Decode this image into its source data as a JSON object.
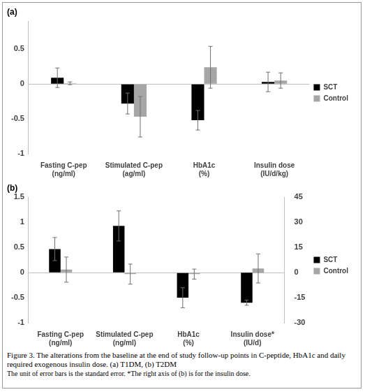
{
  "chart_data": [
    {
      "type": "bar",
      "title": "(a)",
      "categories": [
        [
          "Fasting C-pep",
          "(ng/ml)"
        ],
        [
          "Stimulated C-pep",
          "(ag/ml)"
        ],
        [
          "HbA1c",
          "(%)"
        ],
        [
          "Insulin dose",
          "(IU/d/kg)"
        ]
      ],
      "series": [
        {
          "name": "SCT",
          "color": "#000000",
          "values": [
            0.09,
            -0.28,
            -0.52,
            0.03
          ],
          "errors": [
            0.14,
            0.15,
            0.14,
            0.14
          ]
        },
        {
          "name": "Control",
          "color": "#a6a6a6",
          "values": [
            0.01,
            -0.47,
            0.24,
            0.05
          ],
          "errors": [
            0.02,
            0.29,
            0.3,
            0.11
          ]
        }
      ],
      "ylim": [
        -1,
        0.9
      ],
      "yticks": [
        -1,
        -0.5,
        0,
        0.5
      ],
      "grid": false,
      "legend": "right"
    },
    {
      "type": "bar",
      "title": "(b)",
      "categories": [
        [
          "Fasting C-pep",
          "(ng/ml)"
        ],
        [
          "Stimulated C-pep",
          "(ng/ml)"
        ],
        [
          "HbA1c",
          "(%)"
        ],
        [
          "Insulin dose*",
          "(IU/d)"
        ]
      ],
      "series": [
        {
          "name": "SCT",
          "color": "#000000",
          "values": [
            0.47,
            0.93,
            -0.5,
            null
          ],
          "errors": [
            0.23,
            0.3,
            0.2,
            null
          ]
        },
        {
          "name": "Control",
          "color": "#a6a6a6",
          "values": [
            0.06,
            -0.03,
            -0.03,
            null
          ],
          "errors": [
            0.25,
            0.2,
            0.1,
            null
          ]
        },
        {
          "name": "SCT",
          "color": "#000000",
          "axis": "y2",
          "values": [
            null,
            null,
            null,
            -18
          ],
          "errors": [
            null,
            null,
            null,
            1.5
          ]
        },
        {
          "name": "Control",
          "color": "#a6a6a6",
          "axis": "y2",
          "values": [
            null,
            null,
            null,
            2.5
          ],
          "errors": [
            null,
            null,
            null,
            8.7
          ]
        }
      ],
      "ylim": [
        -1,
        1.5
      ],
      "yticks": [
        -1,
        -0.5,
        0,
        0.5,
        1,
        1.5
      ],
      "y2lim": [
        -30,
        45
      ],
      "y2ticks": [
        -30,
        -15,
        0,
        15,
        30,
        45
      ],
      "grid": false,
      "legend": "right"
    }
  ],
  "caption": {
    "title": "Figure 3. The alterations from the baseline at the end of study follow-up points in C-peptide, HbA1c and daily required exogenous insulin dose. (a) T1DM, (b) T2DM",
    "note": "The unit of error bars is the standard error. *The right axis of (b) is for the insulin dose."
  }
}
